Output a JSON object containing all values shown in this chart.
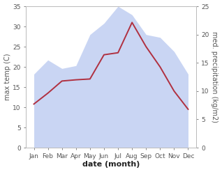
{
  "months": [
    "Jan",
    "Feb",
    "Mar",
    "Apr",
    "May",
    "Jun",
    "Jul",
    "Aug",
    "Sep",
    "Oct",
    "Nov",
    "Dec"
  ],
  "max_temp": [
    10.8,
    13.5,
    16.5,
    16.8,
    17.0,
    23.0,
    23.5,
    31.0,
    25.0,
    20.0,
    14.0,
    9.5
  ],
  "precipitation": [
    13.0,
    15.5,
    14.0,
    14.5,
    20.0,
    22.0,
    25.0,
    23.5,
    20.0,
    19.5,
    17.0,
    13.0
  ],
  "temp_color": "#b03040",
  "precip_fill_color": "#b8c8f0",
  "precip_fill_alpha": 0.75,
  "temp_ylim": [
    0,
    35
  ],
  "precip_ylim": [
    0,
    25
  ],
  "temp_yticks": [
    0,
    5,
    10,
    15,
    20,
    25,
    30,
    35
  ],
  "precip_yticks": [
    0,
    5,
    10,
    15,
    20,
    25
  ],
  "xlabel": "date (month)",
  "ylabel_left": "max temp (C)",
  "ylabel_right": "med. precipitation (kg/m2)",
  "bg_color": "#ffffff",
  "spine_color": "#bbbbbb",
  "tick_color": "#555555",
  "label_fontsize": 7,
  "tick_fontsize": 6.5
}
